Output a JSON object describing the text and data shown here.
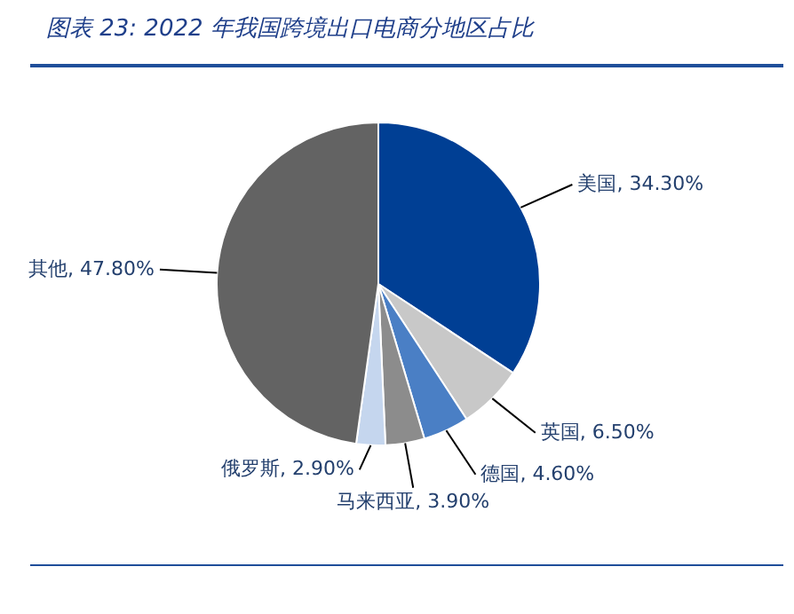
{
  "chart_data": {
    "type": "pie",
    "title": "图表 23:  2022 年我国跨境出口电商分地区占比",
    "categories": [
      "美国",
      "英国",
      "德国",
      "马来西亚",
      "俄罗斯",
      "其他"
    ],
    "values": [
      34.3,
      6.5,
      4.6,
      3.9,
      2.9,
      47.8
    ],
    "value_labels": [
      "34.30%",
      "6.50%",
      "4.60%",
      "3.90%",
      "2.90%",
      "47.80%"
    ],
    "colors": [
      "#003f94",
      "#c8c8c8",
      "#4a7fc5",
      "#8c8c8c",
      "#c5d6ee",
      "#636363"
    ]
  }
}
